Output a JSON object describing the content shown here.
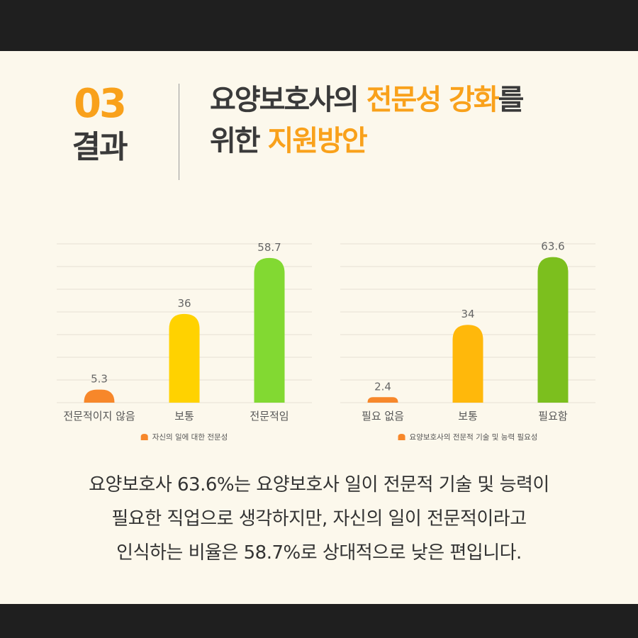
{
  "header": {
    "number": "03",
    "label": "결과",
    "title_line1_a": "요양보호사의 ",
    "title_line1_b": "전문성 강화",
    "title_line1_c": "를",
    "title_line2_a": "위한 ",
    "title_line2_b": "지원방안"
  },
  "chart_data": [
    {
      "type": "bar",
      "categories": [
        "전문적이지 않음",
        "보통",
        "전문적임"
      ],
      "values": [
        5.3,
        36,
        58.7
      ],
      "colors": [
        "#f7872a",
        "#ffd200",
        "#82d932"
      ],
      "legend": "자신의 일에 대한 전문성",
      "legend_color": "#f7872a",
      "legend_position": "bottom",
      "ylim": [
        0,
        65
      ],
      "grid": true
    },
    {
      "type": "bar",
      "categories": [
        "필요 없음",
        "보통",
        "필요함"
      ],
      "values": [
        2.4,
        34,
        63.6
      ],
      "colors": [
        "#f7872a",
        "#ffb80b",
        "#7cbf1e"
      ],
      "legend": "요양보호사의 전문적 기술 및 능력 필요성",
      "legend_color": "#f7872a",
      "legend_position": "bottom",
      "ylim": [
        0,
        70
      ],
      "grid": true
    }
  ],
  "summary": {
    "line1": "요양보호사 63.6%는 요양보호사 일이 전문적 기술 및 능력이",
    "line2": "필요한 직업으로 생각하지만, 자신의 일이 전문적이라고",
    "line3": "인식하는 비율은 58.7%로 상대적으로 낮은 편입니다."
  }
}
